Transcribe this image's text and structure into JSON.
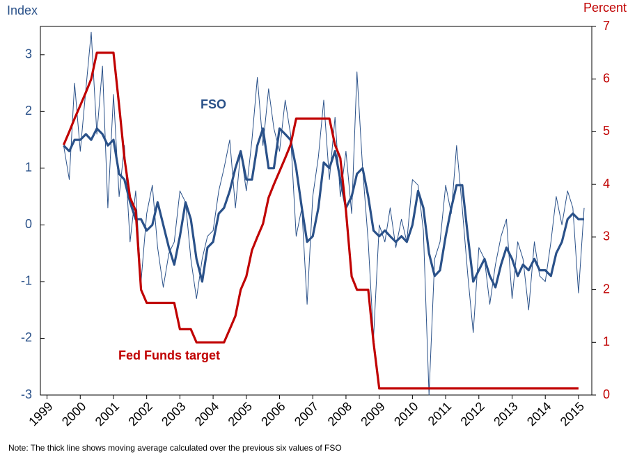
{
  "chart_data": {
    "type": "line",
    "y_label": "Index",
    "y2_label": "Percent",
    "note": "Note: The thick line shows moving average calculated over the previous six values of FSO",
    "x": [
      1999.5,
      1999.67,
      1999.83,
      2000.0,
      2000.17,
      2000.33,
      2000.5,
      2000.67,
      2000.83,
      2001.0,
      2001.17,
      2001.33,
      2001.5,
      2001.67,
      2001.83,
      2002.0,
      2002.17,
      2002.33,
      2002.5,
      2002.67,
      2002.83,
      2003.0,
      2003.17,
      2003.33,
      2003.5,
      2003.67,
      2003.83,
      2004.0,
      2004.17,
      2004.33,
      2004.5,
      2004.67,
      2004.83,
      2005.0,
      2005.17,
      2005.33,
      2005.5,
      2005.67,
      2005.83,
      2006.0,
      2006.17,
      2006.33,
      2006.5,
      2006.67,
      2006.83,
      2007.0,
      2007.17,
      2007.33,
      2007.5,
      2007.67,
      2007.83,
      2008.0,
      2008.17,
      2008.33,
      2008.5,
      2008.67,
      2008.83,
      2009.0,
      2009.17,
      2009.33,
      2009.5,
      2009.67,
      2009.83,
      2010.0,
      2010.17,
      2010.33,
      2010.5,
      2010.67,
      2010.83,
      2011.0,
      2011.17,
      2011.33,
      2011.5,
      2011.67,
      2011.83,
      2012.0,
      2012.17,
      2012.33,
      2012.5,
      2012.67,
      2012.83,
      2013.0,
      2013.17,
      2013.33,
      2013.5,
      2013.67,
      2013.83,
      2014.0,
      2014.17,
      2014.33,
      2014.5,
      2014.67,
      2014.83,
      2015.0,
      2015.17
    ],
    "series": [
      {
        "color": "#2a5189",
        "values": [
          1.4,
          0.8,
          2.5,
          1.3,
          2.4,
          3.4,
          1.6,
          2.8,
          0.3,
          2.3,
          0.5,
          1.4,
          -0.3,
          0.6,
          -1.0,
          0.2,
          0.7,
          -0.4,
          -1.1,
          -0.5,
          -0.3,
          0.6,
          0.4,
          -0.6,
          -1.3,
          -0.6,
          -0.2,
          -0.1,
          0.6,
          1.0,
          1.5,
          0.3,
          1.3,
          0.6,
          1.5,
          2.6,
          1.4,
          2.4,
          1.7,
          1.3,
          2.2,
          1.6,
          -0.2,
          0.3,
          -1.4,
          0.5,
          1.2,
          2.2,
          0.8,
          1.9,
          0.5,
          1.3,
          0.2,
          2.7,
          1.0,
          -0.3,
          -2.0,
          0.0,
          -0.3,
          0.3,
          -0.4,
          0.1,
          -0.3,
          0.8,
          0.7,
          -0.1,
          -3.0,
          -0.6,
          -0.3,
          0.7,
          0.2,
          1.4,
          0.3,
          -0.9,
          -1.9,
          -0.4,
          -0.6,
          -1.4,
          -0.7,
          -0.2,
          0.1,
          -1.3,
          -0.3,
          -0.6,
          -1.5,
          -0.3,
          -0.9,
          -1.0,
          -0.3,
          0.5,
          0.0,
          0.6,
          0.3,
          -1.2,
          0.3
        ]
      },
      {
        "name": "FSO",
        "color": "#2a5189",
        "values": [
          1.4,
          1.3,
          1.5,
          1.5,
          1.6,
          1.5,
          1.7,
          1.6,
          1.4,
          1.5,
          0.9,
          0.8,
          0.4,
          0.1,
          0.1,
          -0.1,
          0.0,
          0.4,
          0.0,
          -0.4,
          -0.7,
          -0.2,
          0.4,
          0.1,
          -0.6,
          -1.0,
          -0.4,
          -0.3,
          0.2,
          0.3,
          0.6,
          1.0,
          1.3,
          0.8,
          0.8,
          1.4,
          1.7,
          1.0,
          1.0,
          1.7,
          1.6,
          1.5,
          1.0,
          0.3,
          -0.3,
          -0.2,
          0.3,
          1.1,
          1.0,
          1.3,
          0.8,
          0.3,
          0.5,
          0.9,
          1.0,
          0.5,
          -0.1,
          -0.2,
          -0.1,
          -0.2,
          -0.3,
          -0.2,
          -0.3,
          0.0,
          0.6,
          0.3,
          -0.5,
          -0.9,
          -0.8,
          -0.2,
          0.3,
          0.7,
          0.7,
          -0.2,
          -1.0,
          -0.8,
          -0.6,
          -0.9,
          -1.1,
          -0.7,
          -0.4,
          -0.6,
          -0.9,
          -0.7,
          -0.8,
          -0.6,
          -0.8,
          -0.8,
          -0.9,
          -0.5,
          -0.3,
          0.1,
          0.2,
          0.1,
          0.1
        ]
      },
      {
        "name": "Fed Funds target",
        "color": "#c00000",
        "axis": "y2",
        "values": [
          4.75,
          5.0,
          5.25,
          5.5,
          5.75,
          6.0,
          6.5,
          6.5,
          6.5,
          6.5,
          5.5,
          4.5,
          3.75,
          3.5,
          2.0,
          1.75,
          1.75,
          1.75,
          1.75,
          1.75,
          1.75,
          1.25,
          1.25,
          1.25,
          1.0,
          1.0,
          1.0,
          1.0,
          1.0,
          1.0,
          1.25,
          1.5,
          2.0,
          2.25,
          2.75,
          3.0,
          3.25,
          3.75,
          4.0,
          4.25,
          4.5,
          4.75,
          5.25,
          5.25,
          5.25,
          5.25,
          5.25,
          5.25,
          5.25,
          4.75,
          4.5,
          3.5,
          2.25,
          2.0,
          2.0,
          2.0,
          1.0,
          0.125,
          0.125,
          0.125,
          0.125,
          0.125,
          0.125,
          0.125,
          0.125,
          0.125,
          0.125,
          0.125,
          0.125,
          0.125,
          0.125,
          0.125,
          0.125,
          0.125,
          0.125,
          0.125,
          0.125,
          0.125,
          0.125,
          0.125,
          0.125,
          0.125,
          0.125,
          0.125,
          0.125,
          0.125,
          0.125,
          0.125,
          0.125,
          0.125,
          0.125,
          0.125,
          0.125,
          0.125,
          null
        ]
      }
    ],
    "xlim": [
      1998.8,
      2015.4
    ],
    "xticks": [
      1999,
      2000,
      2001,
      2002,
      2003,
      2004,
      2005,
      2006,
      2007,
      2008,
      2009,
      2010,
      2011,
      2012,
      2013,
      2014,
      2015
    ],
    "ylim": [
      -3,
      3.5
    ],
    "yticks": [
      -3,
      -2,
      -1,
      0,
      1,
      2,
      3
    ],
    "y2lim": [
      0,
      7
    ],
    "y2ticks": [
      0,
      1,
      2,
      3,
      4,
      5,
      6,
      7
    ]
  }
}
